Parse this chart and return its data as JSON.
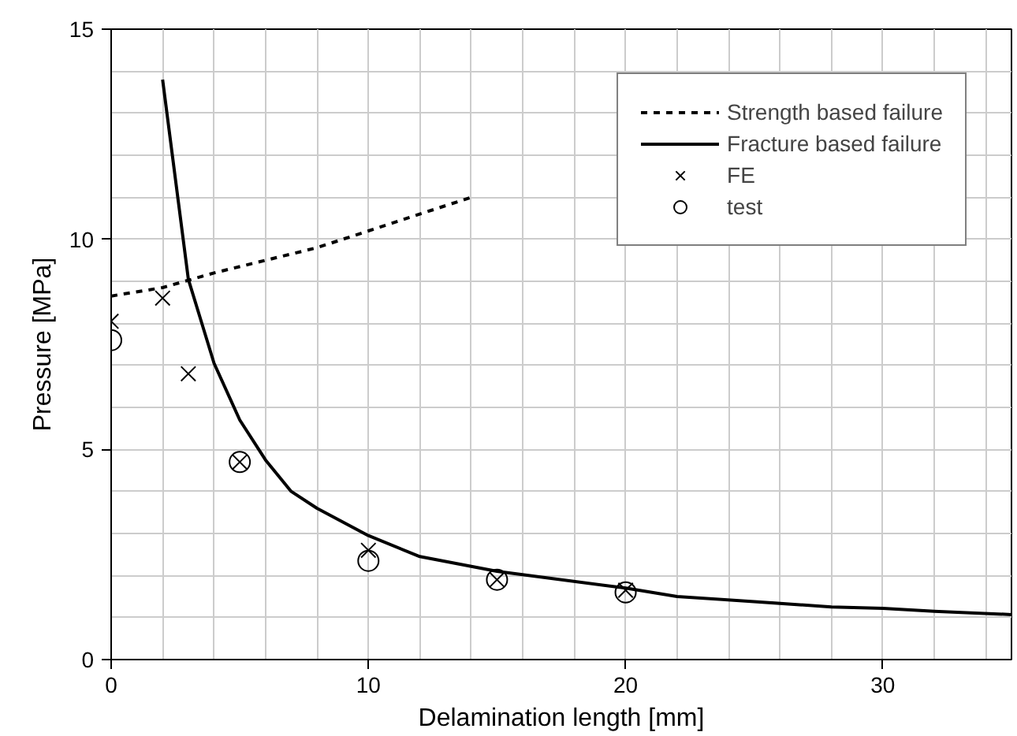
{
  "chart_data": {
    "type": "line",
    "xlabel": "Delamination length [mm]",
    "ylabel": "Pressure [MPa]",
    "xlim": [
      0,
      35
    ],
    "ylim": [
      0,
      15
    ],
    "xticks": [
      0,
      {
        "value": 2,
        "label": null
      },
      {
        "value": 4,
        "label": null
      },
      {
        "value": 6,
        "label": null
      },
      {
        "value": 8,
        "label": null
      },
      10,
      {
        "value": 12,
        "label": null
      },
      {
        "value": 14,
        "label": null
      },
      {
        "value": 16,
        "label": null
      },
      {
        "value": 18,
        "label": null
      },
      20,
      {
        "value": 22,
        "label": null
      },
      {
        "value": 24,
        "label": null
      },
      {
        "value": 26,
        "label": null
      },
      {
        "value": 28,
        "label": null
      },
      30,
      {
        "value": 32,
        "label": null
      },
      {
        "value": 34,
        "label": null
      }
    ],
    "yticks": [
      0,
      {
        "value": 1,
        "label": null
      },
      {
        "value": 2,
        "label": null
      },
      {
        "value": 3,
        "label": null
      },
      {
        "value": 4,
        "label": null
      },
      5,
      {
        "value": 6,
        "label": null
      },
      {
        "value": 7,
        "label": null
      },
      {
        "value": 8,
        "label": null
      },
      {
        "value": 9,
        "label": null
      },
      10,
      {
        "value": 11,
        "label": null
      },
      {
        "value": 12,
        "label": null
      },
      {
        "value": 13,
        "label": null
      },
      {
        "value": 14,
        "label": null
      },
      15
    ],
    "grid": true,
    "legend": "top right",
    "series": [
      {
        "name": "Strength based failure",
        "line_style": "dashed",
        "marker": "none",
        "color": "#000000",
        "x": [
          0,
          2,
          4,
          6,
          8,
          10,
          12,
          14
        ],
        "values": [
          8.65,
          8.85,
          9.2,
          9.5,
          9.8,
          10.2,
          10.6,
          11.0
        ]
      },
      {
        "name": "Fracture based failure",
        "line_style": "solid",
        "marker": "none",
        "color": "#000000",
        "x": [
          2,
          3,
          4,
          5,
          6,
          7,
          8,
          10,
          12,
          15,
          20,
          22,
          25,
          28,
          30,
          32,
          35
        ],
        "values": [
          13.8,
          9.05,
          7.05,
          5.7,
          4.75,
          4.0,
          3.6,
          2.95,
          2.45,
          2.1,
          1.7,
          1.5,
          1.38,
          1.25,
          1.22,
          1.15,
          1.07
        ]
      },
      {
        "name": "FE",
        "type": "scatter",
        "marker": "cross",
        "color": "#000000",
        "x": [
          0,
          2,
          3,
          5,
          10,
          15,
          20
        ],
        "values": [
          8.05,
          8.6,
          6.8,
          4.7,
          2.6,
          1.9,
          1.65
        ]
      },
      {
        "name": "test",
        "type": "scatter",
        "marker": "circle",
        "color": "#000000",
        "x": [
          0,
          5,
          10,
          15,
          20
        ],
        "values": [
          7.6,
          4.7,
          2.35,
          1.9,
          1.6
        ]
      }
    ]
  }
}
